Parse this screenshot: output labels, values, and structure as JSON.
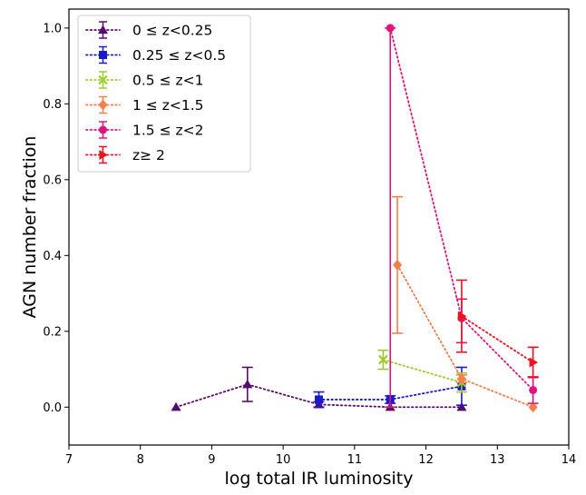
{
  "chart_data": {
    "type": "scatter",
    "xlabel": "log total IR luminosity",
    "ylabel": "AGN number fraction",
    "xlim": [
      7,
      14
    ],
    "ylim": [
      -0.1,
      1.05
    ],
    "xticks": [
      7,
      8,
      9,
      10,
      11,
      12,
      13,
      14
    ],
    "yticks": [
      0.0,
      0.2,
      0.4,
      0.6,
      0.8,
      1.0
    ],
    "xtick_labels": [
      "7",
      "8",
      "9",
      "10",
      "11",
      "12",
      "13",
      "14"
    ],
    "ytick_labels": [
      "0.0",
      "0.2",
      "0.4",
      "0.6",
      "0.8",
      "1.0"
    ],
    "grid": false,
    "legend_position": "top-left",
    "line_style": "dotted",
    "series": [
      {
        "name": "0 ≤ z<0.25",
        "color": "#5a0a6e",
        "marker": "triangle-up",
        "x": [
          8.5,
          9.5,
          10.5,
          11.5,
          12.5
        ],
        "y": [
          0.0,
          0.06,
          0.007,
          0.0,
          0.0
        ],
        "yerr": [
          0.0,
          0.045,
          0.007,
          0.0,
          0.0
        ]
      },
      {
        "name": "0.25 ≤ z<0.5",
        "color": "#1a1acc",
        "marker": "square",
        "x": [
          10.5,
          11.5,
          12.5
        ],
        "y": [
          0.02,
          0.02,
          0.055
        ],
        "yerr": [
          0.02,
          0.01,
          0.05
        ]
      },
      {
        "name": "0.5 ≤ z<1",
        "color": "#9ccc2a",
        "marker": "x",
        "x": [
          11.4,
          12.5
        ],
        "y": [
          0.125,
          0.065
        ],
        "yerr": [
          0.025,
          0.025
        ]
      },
      {
        "name": "1 ≤ z<1.5",
        "color": "#f5804a",
        "marker": "diamond",
        "x": [
          11.6,
          12.5,
          13.5
        ],
        "y": [
          0.375,
          0.075,
          0.0
        ],
        "yerr": [
          0.18,
          0.01,
          0.0
        ]
      },
      {
        "name": "1.5 ≤ z<2",
        "color": "#e6127c",
        "marker": "circle",
        "x": [
          11.5,
          12.5,
          13.5
        ],
        "y": [
          1.0,
          0.235,
          0.045
        ],
        "yerr_low": [
          1.0,
          0.065,
          0.035
        ],
        "yerr_high": [
          0.0,
          0.05,
          0.035
        ]
      },
      {
        "name": "z≥  2",
        "color": "#f0101e",
        "marker": "triangle-right",
        "x": [
          12.5,
          13.5
        ],
        "y": [
          0.24,
          0.118
        ],
        "yerr": [
          0.095,
          0.04
        ]
      }
    ]
  }
}
